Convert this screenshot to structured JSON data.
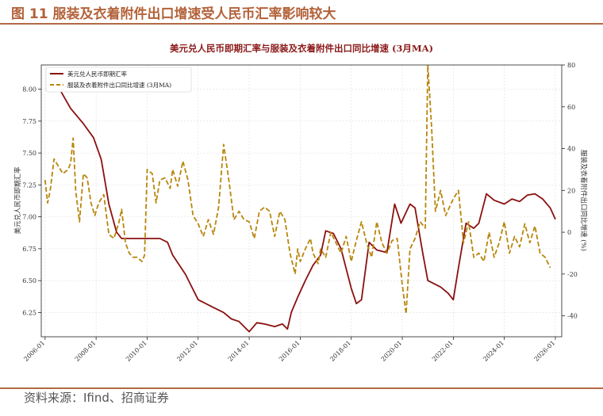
{
  "figure_title": "图 11 服装及衣着附件出口增速受人民币汇率影响较大",
  "source": "资料来源：Ifind、招商证券",
  "colors": {
    "accent": "#b3623a",
    "fx_line": "#8b1010",
    "export_line": "#b8860b"
  },
  "chart_data": {
    "type": "line",
    "title": "美元兑人民币即期汇率与服装及衣着附件出口同比增速 (3月MA)",
    "ylabel_left": "美元兑人民币即期汇率",
    "ylabel_right": "服装及衣着附件出口同比增速 (%)",
    "ylim_left": [
      6.06,
      8.19
    ],
    "ylim_right": [
      -50,
      80
    ],
    "x_ticks": [
      "2006-01",
      "2008-01",
      "2010-01",
      "2012-01",
      "2014-01",
      "2016-01",
      "2018-01",
      "2020-01",
      "2022-01",
      "2024-01",
      "2026-01"
    ],
    "y_left_ticks": [
      "6.25",
      "6.50",
      "6.75",
      "7.00",
      "7.25",
      "7.50",
      "7.75",
      "8.00"
    ],
    "y_right_ticks": [
      "-40",
      "-20",
      "0",
      "20",
      "40",
      "60",
      "80"
    ],
    "grid": true,
    "legend_position": "top-left",
    "series": [
      {
        "name": "美元兑人民币即期汇率",
        "axis": "left",
        "color": "#8b1010",
        "style": "solid",
        "points": [
          [
            2006.6,
            7.99
          ],
          [
            2007.0,
            7.85
          ],
          [
            2007.5,
            7.73
          ],
          [
            2007.9,
            7.62
          ],
          [
            2008.2,
            7.45
          ],
          [
            2008.5,
            7.1
          ],
          [
            2008.8,
            6.88
          ],
          [
            2009.0,
            6.83
          ],
          [
            2009.5,
            6.83
          ],
          [
            2010.0,
            6.83
          ],
          [
            2010.5,
            6.83
          ],
          [
            2010.8,
            6.8
          ],
          [
            2011.0,
            6.7
          ],
          [
            2011.5,
            6.55
          ],
          [
            2012.0,
            6.35
          ],
          [
            2012.5,
            6.3
          ],
          [
            2013.0,
            6.25
          ],
          [
            2013.3,
            6.2
          ],
          [
            2013.6,
            6.18
          ],
          [
            2014.0,
            6.1
          ],
          [
            2014.3,
            6.17
          ],
          [
            2014.6,
            6.16
          ],
          [
            2015.0,
            6.14
          ],
          [
            2015.3,
            6.16
          ],
          [
            2015.5,
            6.12
          ],
          [
            2015.65,
            6.25
          ],
          [
            2015.9,
            6.37
          ],
          [
            2016.2,
            6.5
          ],
          [
            2016.5,
            6.62
          ],
          [
            2016.8,
            6.7
          ],
          [
            2017.0,
            6.89
          ],
          [
            2017.3,
            6.87
          ],
          [
            2017.6,
            6.75
          ],
          [
            2018.0,
            6.44
          ],
          [
            2018.2,
            6.32
          ],
          [
            2018.4,
            6.35
          ],
          [
            2018.7,
            6.8
          ],
          [
            2019.0,
            6.74
          ],
          [
            2019.4,
            6.72
          ],
          [
            2019.7,
            7.1
          ],
          [
            2019.95,
            6.95
          ],
          [
            2020.3,
            7.1
          ],
          [
            2020.5,
            7.07
          ],
          [
            2020.8,
            6.72
          ],
          [
            2021.0,
            6.5
          ],
          [
            2021.5,
            6.45
          ],
          [
            2021.8,
            6.4
          ],
          [
            2022.0,
            6.35
          ],
          [
            2022.2,
            6.6
          ],
          [
            2022.5,
            6.95
          ],
          [
            2022.8,
            6.91
          ],
          [
            2023.0,
            6.95
          ],
          [
            2023.3,
            7.18
          ],
          [
            2023.6,
            7.13
          ],
          [
            2024.0,
            7.1
          ],
          [
            2024.3,
            7.14
          ],
          [
            2024.6,
            7.12
          ],
          [
            2024.9,
            7.17
          ],
          [
            2025.2,
            7.18
          ],
          [
            2025.5,
            7.14
          ],
          [
            2025.8,
            7.07
          ],
          [
            2026.0,
            6.98
          ]
        ]
      },
      {
        "name": "服装及衣着附件出口同比增速 (3月MA)",
        "axis": "right",
        "color": "#b8860b",
        "style": "dashed",
        "points": [
          [
            2006.0,
            25
          ],
          [
            2006.1,
            14
          ],
          [
            2006.2,
            20
          ],
          [
            2006.35,
            35
          ],
          [
            2006.5,
            32
          ],
          [
            2006.7,
            28
          ],
          [
            2006.9,
            30
          ],
          [
            2007.0,
            33
          ],
          [
            2007.1,
            45
          ],
          [
            2007.2,
            20
          ],
          [
            2007.35,
            5
          ],
          [
            2007.5,
            28
          ],
          [
            2007.65,
            26
          ],
          [
            2007.8,
            14
          ],
          [
            2007.95,
            8
          ],
          [
            2008.1,
            14
          ],
          [
            2008.3,
            18
          ],
          [
            2008.5,
            -1
          ],
          [
            2008.7,
            -3
          ],
          [
            2008.9,
            5
          ],
          [
            2009.0,
            11
          ],
          [
            2009.15,
            -5
          ],
          [
            2009.3,
            -10
          ],
          [
            2009.45,
            -12
          ],
          [
            2009.6,
            -12
          ],
          [
            2009.8,
            -14
          ],
          [
            2009.9,
            -11
          ],
          [
            2010.0,
            30
          ],
          [
            2010.2,
            28
          ],
          [
            2010.35,
            14
          ],
          [
            2010.5,
            25
          ],
          [
            2010.7,
            26
          ],
          [
            2010.9,
            21
          ],
          [
            2011.0,
            30
          ],
          [
            2011.2,
            22
          ],
          [
            2011.4,
            34
          ],
          [
            2011.6,
            25
          ],
          [
            2011.8,
            8
          ],
          [
            2012.0,
            4
          ],
          [
            2012.2,
            -2
          ],
          [
            2012.4,
            6
          ],
          [
            2012.6,
            -1
          ],
          [
            2012.8,
            12
          ],
          [
            2013.0,
            42
          ],
          [
            2013.2,
            25
          ],
          [
            2013.4,
            6
          ],
          [
            2013.6,
            10
          ],
          [
            2013.8,
            6
          ],
          [
            2014.0,
            5
          ],
          [
            2014.2,
            -3
          ],
          [
            2014.4,
            10
          ],
          [
            2014.6,
            12
          ],
          [
            2014.8,
            10
          ],
          [
            2015.0,
            -2
          ],
          [
            2015.2,
            10
          ],
          [
            2015.4,
            6
          ],
          [
            2015.6,
            -10
          ],
          [
            2015.8,
            -20
          ],
          [
            2015.9,
            -8
          ],
          [
            2016.0,
            -14
          ],
          [
            2016.2,
            -8
          ],
          [
            2016.4,
            -3
          ],
          [
            2016.5,
            -10
          ],
          [
            2016.7,
            -15
          ],
          [
            2016.8,
            -8
          ],
          [
            2017.0,
            -12
          ],
          [
            2017.2,
            0
          ],
          [
            2017.4,
            -5
          ],
          [
            2017.6,
            -10
          ],
          [
            2017.8,
            -2
          ],
          [
            2018.0,
            -14
          ],
          [
            2018.2,
            -4
          ],
          [
            2018.4,
            5
          ],
          [
            2018.6,
            -5
          ],
          [
            2018.8,
            -12
          ],
          [
            2019.0,
            5
          ],
          [
            2019.2,
            -5
          ],
          [
            2019.4,
            -10
          ],
          [
            2019.6,
            -4
          ],
          [
            2019.8,
            -3
          ],
          [
            2020.0,
            -25
          ],
          [
            2020.15,
            -39
          ],
          [
            2020.3,
            -8
          ],
          [
            2020.5,
            -3
          ],
          [
            2020.7,
            5
          ],
          [
            2020.9,
            2
          ],
          [
            2021.0,
            80
          ],
          [
            2021.15,
            50
          ],
          [
            2021.3,
            10
          ],
          [
            2021.5,
            20
          ],
          [
            2021.7,
            8
          ],
          [
            2022.0,
            16
          ],
          [
            2022.2,
            20
          ],
          [
            2022.4,
            -5
          ],
          [
            2022.6,
            5
          ],
          [
            2022.8,
            -12
          ],
          [
            2023.0,
            -10
          ],
          [
            2023.2,
            -14
          ],
          [
            2023.4,
            0
          ],
          [
            2023.6,
            -12
          ],
          [
            2023.8,
            -5
          ],
          [
            2024.0,
            5
          ],
          [
            2024.2,
            -10
          ],
          [
            2024.4,
            -2
          ],
          [
            2024.6,
            -7
          ],
          [
            2024.8,
            4
          ],
          [
            2025.0,
            -5
          ],
          [
            2025.2,
            3
          ],
          [
            2025.4,
            -10
          ],
          [
            2025.6,
            -12
          ],
          [
            2025.8,
            -17
          ]
        ]
      }
    ]
  }
}
